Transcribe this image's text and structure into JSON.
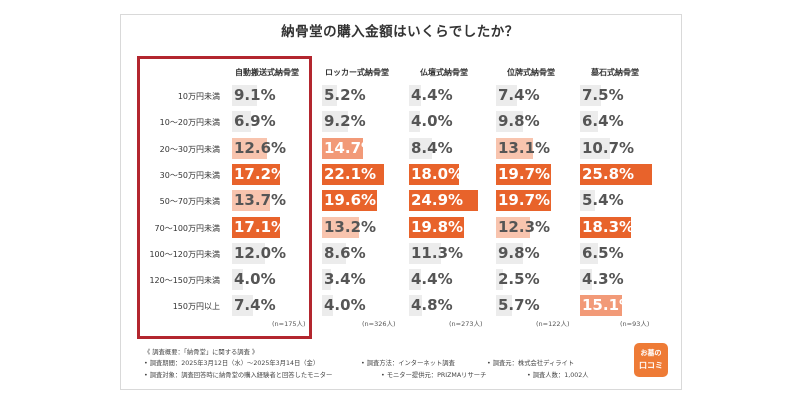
{
  "chart_data": {
    "type": "table",
    "title": "納骨堂の購入金額はいくらでしたか？",
    "columns": [
      {
        "name": "自動搬送式納骨堂",
        "n": "(n=175人)"
      },
      {
        "name": "ロッカー式納骨堂",
        "n": "(n=326人)"
      },
      {
        "name": "仏壇式納骨堂",
        "n": "(n=273人)"
      },
      {
        "name": "位牌式納骨堂",
        "n": "(n=122人)"
      },
      {
        "name": "墓石式納骨堂",
        "n": "(n=93人)"
      }
    ],
    "rows": [
      "10万円未満",
      "10～20万円未満",
      "20～30万円未満",
      "30～50万円未満",
      "50～70万円未満",
      "70～100万円未満",
      "100～120万円未満",
      "120～150万円未満",
      "150万円以上"
    ],
    "values": [
      [
        9.1,
        5.2,
        4.4,
        7.4,
        7.5
      ],
      [
        6.9,
        9.2,
        4.0,
        9.8,
        6.4
      ],
      [
        12.6,
        14.7,
        8.4,
        13.1,
        10.7
      ],
      [
        17.2,
        22.1,
        18.0,
        19.7,
        25.8
      ],
      [
        13.7,
        19.6,
        24.9,
        19.7,
        5.4
      ],
      [
        17.1,
        13.2,
        19.8,
        12.3,
        18.3
      ],
      [
        12.0,
        8.6,
        11.3,
        9.8,
        6.5
      ],
      [
        4.0,
        3.4,
        4.4,
        2.5,
        4.3
      ],
      [
        7.4,
        4.0,
        4.8,
        5.7,
        15.1
      ]
    ],
    "value_labels": [
      [
        "9.1%",
        "5.2%",
        "4.4%",
        "7.4%",
        "7.5%"
      ],
      [
        "6.9%",
        "9.2%",
        "4.0%",
        "9.8%",
        "6.4%"
      ],
      [
        "12.6%",
        "14.7%",
        "8.4%",
        "13.1%",
        "10.7%"
      ],
      [
        "17.2%",
        "22.1%",
        "18.0%",
        "19.7%",
        "25.8%"
      ],
      [
        "13.7%",
        "19.6%",
        "24.9%",
        "19.7%",
        "5.4%"
      ],
      [
        "17.1%",
        "13.2%",
        "19.8%",
        "12.3%",
        "18.3%"
      ],
      [
        "12.0%",
        "8.6%",
        "11.3%",
        "9.8%",
        "6.5%"
      ],
      [
        "4.0%",
        "3.4%",
        "4.4%",
        "2.5%",
        "4.3%"
      ],
      [
        "7.4%",
        "4.0%",
        "4.8%",
        "5.7%",
        "15.1%"
      ]
    ],
    "highlighted_column": "自動搬送式納骨堂",
    "colors": {
      "dark": "#e8632b",
      "mid": "#f29a78",
      "light": "#f8c4ae",
      "faint": "#fbe0d3",
      "neutral": "#ececec",
      "text_dark": "#555555",
      "text_light": "#ffffff",
      "highlight_border": "#b3262e"
    }
  },
  "survey": {
    "overview": "《 調査概要：「納骨堂」に関する調査 》",
    "period": "• 調査期間：2025年3月12日（水）～2025年3月14日（金）",
    "method": "• 調査方法：インターネット調査",
    "source": "• 調査元：株式会社ディライト",
    "target": "• 調査対象：調査回答時に納骨堂の購入経験者と回答したモニター",
    "provider": "• モニター提供元：PRIZMAリサーチ",
    "count": "• 調査人数：1,002人"
  },
  "logo": {
    "line1": "お墓の",
    "line2": "口コミ"
  }
}
